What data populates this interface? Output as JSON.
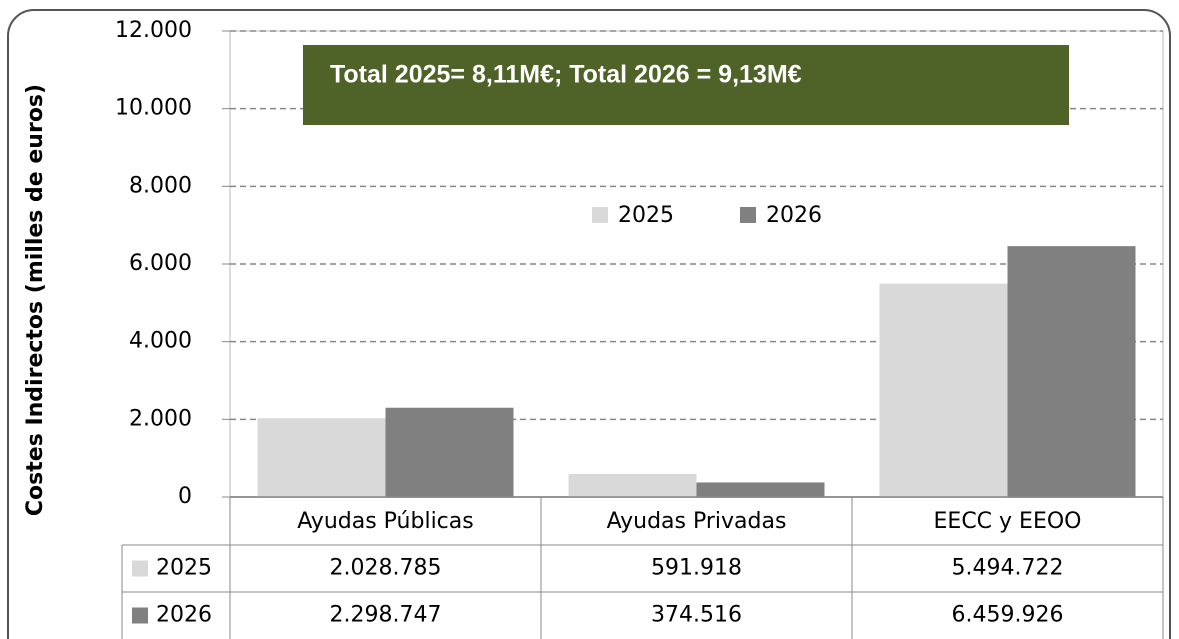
{
  "chart_data": {
    "type": "bar",
    "y_label": "Costes Indirectos (milles de euros)",
    "annotation": "Total 2025= 8,11M€; Total 2026 = 9,13M€",
    "categories": [
      "Ayudas Públicas",
      "Ayudas Privadas",
      "EECC y EEOO"
    ],
    "series": [
      {
        "name": "2025",
        "color": "#d9d9d9",
        "values": [
          2028.785,
          591.918,
          5494.722
        ],
        "value_labels": [
          "2.028.785",
          "591.918",
          "5.494.722"
        ]
      },
      {
        "name": "2026",
        "color": "#808080",
        "values": [
          2298.747,
          374.516,
          6459.926
        ],
        "value_labels": [
          "2.298.747",
          "374.516",
          "6.459.926"
        ]
      }
    ],
    "ylim": [
      0,
      12000
    ],
    "yticks": [
      0,
      {
        "value": 2000,
        "label": "2.000"
      },
      {
        "value": 4000,
        "label": "4.000"
      },
      {
        "value": 6000,
        "label": "6.000"
      },
      {
        "value": 8000,
        "label": "8.000"
      },
      {
        "value": 10000,
        "label": "10.000"
      },
      {
        "value": 12000,
        "label": "12.000"
      }
    ],
    "grid": true,
    "legend": "top"
  }
}
